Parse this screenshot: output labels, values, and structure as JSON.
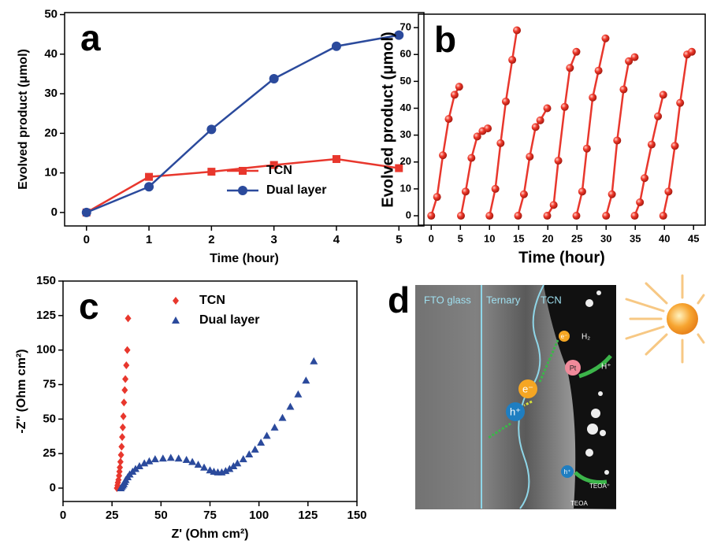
{
  "chart_data": [
    {
      "type": "line",
      "panel_label": "a",
      "xlabel": "Time (hour)",
      "ylabel": "Evolved product (μmol)",
      "x": [
        0,
        1,
        2,
        3,
        4,
        5
      ],
      "xlim": [
        -0.35,
        5.4
      ],
      "xticks": [
        0,
        1,
        2,
        3,
        4,
        5
      ],
      "ylim": [
        -3.4,
        50.5
      ],
      "yticks": [
        0,
        10,
        20,
        30,
        40,
        50
      ],
      "legend": "lower right",
      "series": [
        {
          "name": "TCN",
          "color": "#e8372d",
          "marker": "square",
          "values": [
            0,
            9,
            10.3,
            12,
            13.5,
            11.2
          ]
        },
        {
          "name": "Dual layer",
          "color": "#2b4a9c",
          "marker": "circle",
          "values": [
            0,
            6.5,
            21,
            33.8,
            42,
            44.8
          ]
        }
      ]
    },
    {
      "type": "line",
      "panel_label": "b",
      "xlabel": "Time (hour)",
      "ylabel": "Evolved product (μmol)",
      "xlim": [
        -2.2,
        47
      ],
      "xticks": [
        0,
        5,
        10,
        15,
        20,
        25,
        30,
        35,
        40,
        45
      ],
      "ylim": [
        -3.5,
        75
      ],
      "yticks": [
        0,
        10,
        20,
        30,
        40,
        50,
        60,
        70
      ],
      "series": [
        {
          "color": "#e8372d",
          "marker": "sphere",
          "x": [
            0,
            1,
            2,
            3,
            4,
            4.8
          ],
          "values": [
            0,
            7,
            22.5,
            36,
            45,
            48
          ]
        },
        {
          "color": "#e8372d",
          "marker": "sphere",
          "x": [
            5.1,
            5.9,
            6.9,
            7.9,
            8.8,
            9.7
          ],
          "values": [
            0,
            9,
            21.5,
            29.5,
            31.5,
            32.5
          ]
        },
        {
          "color": "#e8372d",
          "marker": "sphere",
          "x": [
            10,
            11,
            11.9,
            12.8,
            13.9,
            14.7
          ],
          "values": [
            0,
            10,
            27,
            42.5,
            58,
            69
          ]
        },
        {
          "color": "#e8372d",
          "marker": "sphere",
          "x": [
            14.9,
            15.9,
            16.9,
            17.9,
            18.7,
            19.9
          ],
          "values": [
            0,
            8,
            22,
            33,
            35.5,
            40
          ]
        },
        {
          "color": "#e8372d",
          "marker": "sphere",
          "x": [
            19.9,
            21,
            21.8,
            22.9,
            23.8,
            24.9
          ],
          "values": [
            0,
            4,
            20.5,
            40.5,
            55,
            61
          ]
        },
        {
          "color": "#e8372d",
          "marker": "sphere",
          "x": [
            24.9,
            25.9,
            26.7,
            27.7,
            28.7,
            29.9
          ],
          "values": [
            0,
            9,
            25,
            44,
            54,
            66
          ]
        },
        {
          "color": "#e8372d",
          "marker": "sphere",
          "x": [
            30,
            31,
            31.9,
            33,
            33.9,
            34.9
          ],
          "values": [
            0,
            8,
            28,
            47,
            57.5,
            59
          ]
        },
        {
          "color": "#e8372d",
          "marker": "sphere",
          "x": [
            34.9,
            35.8,
            36.6,
            37.8,
            38.9,
            39.8
          ],
          "values": [
            0,
            5,
            14,
            26.5,
            37,
            45
          ]
        },
        {
          "color": "#e8372d",
          "marker": "sphere",
          "x": [
            39.8,
            40.7,
            41.8,
            42.7,
            43.9,
            44.7
          ],
          "values": [
            0,
            9,
            26,
            42,
            60,
            61
          ]
        }
      ]
    },
    {
      "type": "scatter",
      "panel_label": "c",
      "xlabel": "Z' (Ohm cm²)",
      "ylabel": "-Z'' (Ohm cm²)",
      "xlim": [
        0,
        150
      ],
      "xticks": [
        0,
        25,
        50,
        75,
        100,
        125,
        150
      ],
      "ylim": [
        -9.7,
        150
      ],
      "yticks": [
        0,
        25,
        50,
        75,
        100,
        125,
        150
      ],
      "legend": "upper right",
      "series": [
        {
          "name": "TCN",
          "color": "#e8372d",
          "marker": "diamond",
          "x": [
            27.5,
            27.8,
            28,
            28.3,
            28.6,
            28.8,
            29,
            29.3,
            29.6,
            29.9,
            30.2,
            30.5,
            30.8,
            31.1,
            31.5,
            31.8,
            32.3,
            32.8,
            33.2
          ],
          "values": [
            0,
            2,
            4,
            6,
            9,
            12,
            15,
            19,
            24,
            30,
            37,
            44,
            52,
            62,
            71,
            79,
            89,
            100,
            123
          ]
        },
        {
          "name": "Dual layer",
          "color": "#2b4a9c",
          "marker": "triangle",
          "x": [
            29.5,
            30,
            30.5,
            31,
            31.5,
            32,
            33,
            34,
            35.5,
            37,
            39,
            41.5,
            44,
            47,
            51,
            55,
            59,
            63,
            66,
            69,
            72,
            75,
            77,
            79,
            81,
            83,
            85,
            87,
            89,
            92,
            95,
            98,
            101,
            104,
            108,
            112,
            116,
            120,
            124,
            128
          ],
          "values": [
            0,
            1,
            2,
            3,
            4.5,
            6,
            8,
            10,
            12,
            14,
            16,
            18,
            19.5,
            21,
            21.5,
            22,
            21.5,
            20.5,
            19,
            17,
            15,
            13,
            12,
            11.5,
            11.5,
            12.5,
            14,
            16,
            18,
            21,
            24.5,
            28,
            33,
            38,
            44,
            51,
            59,
            68,
            78,
            92
          ]
        }
      ]
    }
  ],
  "diagram": {
    "panel_label": "d",
    "layers": [
      "FTO glass",
      "Ternary",
      "TCN"
    ],
    "labels": {
      "electron": "e⁻",
      "electron_small": "e⁻",
      "hole": "h⁺",
      "hole_small": "h⁺",
      "pt": "Pt",
      "h2": "H₂",
      "proton": "H⁺",
      "teoa": "TEOA",
      "teoa_plus": "TEOA⁺"
    }
  }
}
